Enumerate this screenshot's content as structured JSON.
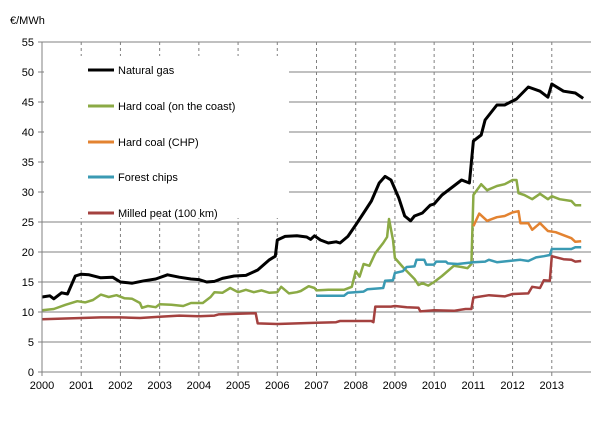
{
  "chart_data": {
    "type": "line",
    "ylabel": "€/MWh",
    "xlabel": "",
    "xlim": [
      2000,
      2014
    ],
    "ylim": [
      0,
      55
    ],
    "x_ticks": [
      "2000",
      "2001",
      "2002",
      "2003",
      "2004",
      "2005",
      "2006",
      "2007",
      "2008",
      "2009",
      "2010",
      "2011",
      "2012",
      "2013"
    ],
    "y_ticks": [
      "0",
      "5",
      "10",
      "15",
      "20",
      "25",
      "30",
      "35",
      "40",
      "45",
      "50",
      "55"
    ],
    "grid": true,
    "legend_position": "top-left",
    "series": [
      {
        "name": "Natural gas",
        "color": "#000000",
        "points": [
          [
            2000,
            12.5
          ],
          [
            2000.2,
            12.7
          ],
          [
            2000.3,
            12.2
          ],
          [
            2000.5,
            13.2
          ],
          [
            2000.65,
            13.0
          ],
          [
            2000.85,
            16.0
          ],
          [
            2001,
            16.3
          ],
          [
            2001.2,
            16.2
          ],
          [
            2001.5,
            15.7
          ],
          [
            2001.8,
            15.8
          ],
          [
            2002,
            15.0
          ],
          [
            2002.3,
            14.8
          ],
          [
            2002.6,
            15.2
          ],
          [
            2002.9,
            15.5
          ],
          [
            2003.2,
            16.2
          ],
          [
            2003.5,
            15.8
          ],
          [
            2003.8,
            15.5
          ],
          [
            2004,
            15.4
          ],
          [
            2004.2,
            15.0
          ],
          [
            2004.4,
            15.1
          ],
          [
            2004.6,
            15.6
          ],
          [
            2004.9,
            16.0
          ],
          [
            2005.2,
            16.1
          ],
          [
            2005.5,
            17.0
          ],
          [
            2005.8,
            18.7
          ],
          [
            2005.95,
            19.3
          ],
          [
            2006.0,
            22.0
          ],
          [
            2006.2,
            22.6
          ],
          [
            2006.5,
            22.7
          ],
          [
            2006.75,
            22.5
          ],
          [
            2006.85,
            22.1
          ],
          [
            2006.95,
            22.7
          ],
          [
            2007.1,
            22.0
          ],
          [
            2007.3,
            21.5
          ],
          [
            2007.5,
            21.7
          ],
          [
            2007.6,
            21.5
          ],
          [
            2007.8,
            22.6
          ],
          [
            2008,
            24.5
          ],
          [
            2008.2,
            26.5
          ],
          [
            2008.4,
            28.5
          ],
          [
            2008.6,
            31.5
          ],
          [
            2008.75,
            32.6
          ],
          [
            2008.9,
            32.0
          ],
          [
            2009.1,
            29.0
          ],
          [
            2009.25,
            26.0
          ],
          [
            2009.4,
            25.2
          ],
          [
            2009.5,
            26.0
          ],
          [
            2009.7,
            26.5
          ],
          [
            2009.9,
            27.8
          ],
          [
            2010.0,
            28.0
          ],
          [
            2010.2,
            29.5
          ],
          [
            2010.5,
            31.0
          ],
          [
            2010.7,
            32.0
          ],
          [
            2010.9,
            31.5
          ],
          [
            2011.0,
            38.5
          ],
          [
            2011.2,
            39.5
          ],
          [
            2011.3,
            42.0
          ],
          [
            2011.6,
            44.5
          ],
          [
            2011.8,
            44.5
          ],
          [
            2012.1,
            45.5
          ],
          [
            2012.4,
            47.5
          ],
          [
            2012.7,
            46.8
          ],
          [
            2012.9,
            45.8
          ],
          [
            2013.0,
            48.0
          ],
          [
            2013.3,
            46.8
          ],
          [
            2013.6,
            46.5
          ],
          [
            2013.8,
            45.6
          ]
        ]
      },
      {
        "name": "Hard coal (on the coast)",
        "color": "#8BAA45",
        "points": [
          [
            2000,
            10.3
          ],
          [
            2000.3,
            10.5
          ],
          [
            2000.6,
            11.2
          ],
          [
            2000.9,
            11.8
          ],
          [
            2001.1,
            11.6
          ],
          [
            2001.3,
            12.0
          ],
          [
            2001.5,
            12.9
          ],
          [
            2001.7,
            12.5
          ],
          [
            2001.9,
            12.8
          ],
          [
            2002.1,
            12.3
          ],
          [
            2002.3,
            12.2
          ],
          [
            2002.5,
            11.5
          ],
          [
            2002.55,
            10.7
          ],
          [
            2002.7,
            11.0
          ],
          [
            2002.9,
            10.8
          ],
          [
            2003,
            11.3
          ],
          [
            2003.3,
            11.2
          ],
          [
            2003.6,
            11.0
          ],
          [
            2003.8,
            11.5
          ],
          [
            2004.1,
            11.5
          ],
          [
            2004.3,
            12.5
          ],
          [
            2004.4,
            13.3
          ],
          [
            2004.6,
            13.2
          ],
          [
            2004.8,
            14.0
          ],
          [
            2005.0,
            13.3
          ],
          [
            2005.2,
            13.7
          ],
          [
            2005.4,
            13.3
          ],
          [
            2005.6,
            13.6
          ],
          [
            2005.8,
            13.2
          ],
          [
            2006.0,
            13.3
          ],
          [
            2006.1,
            14.2
          ],
          [
            2006.3,
            13.1
          ],
          [
            2006.5,
            13.3
          ],
          [
            2006.6,
            13.5
          ],
          [
            2006.8,
            14.3
          ],
          [
            2006.95,
            14.0
          ],
          [
            2007.0,
            13.6
          ],
          [
            2007.3,
            13.7
          ],
          [
            2007.7,
            13.7
          ],
          [
            2007.9,
            14.2
          ],
          [
            2008.0,
            16.8
          ],
          [
            2008.1,
            15.9
          ],
          [
            2008.2,
            18.0
          ],
          [
            2008.35,
            17.7
          ],
          [
            2008.5,
            19.8
          ],
          [
            2008.7,
            21.5
          ],
          [
            2008.8,
            22.5
          ],
          [
            2008.85,
            25.5
          ],
          [
            2008.95,
            22.0
          ],
          [
            2009.0,
            19.0
          ],
          [
            2009.2,
            17.5
          ],
          [
            2009.5,
            15.5
          ],
          [
            2009.6,
            14.5
          ],
          [
            2009.7,
            14.8
          ],
          [
            2009.85,
            14.4
          ],
          [
            2010.0,
            15.0
          ],
          [
            2010.2,
            16.0
          ],
          [
            2010.5,
            17.7
          ],
          [
            2010.7,
            17.5
          ],
          [
            2010.85,
            17.3
          ],
          [
            2010.95,
            18.0
          ],
          [
            2011.0,
            29.5
          ],
          [
            2011.2,
            31.3
          ],
          [
            2011.35,
            30.3
          ],
          [
            2011.6,
            31.0
          ],
          [
            2011.8,
            31.3
          ],
          [
            2012.0,
            32.0
          ],
          [
            2012.1,
            32.0
          ],
          [
            2012.15,
            29.8
          ],
          [
            2012.3,
            29.5
          ],
          [
            2012.5,
            28.8
          ],
          [
            2012.7,
            29.7
          ],
          [
            2012.9,
            28.8
          ],
          [
            2013.0,
            29.3
          ],
          [
            2013.2,
            28.8
          ],
          [
            2013.5,
            28.5
          ],
          [
            2013.6,
            27.8
          ],
          [
            2013.75,
            27.8
          ]
        ]
      },
      {
        "name": "Hard coal (CHP)",
        "color": "#E38331",
        "points": [
          [
            2011.0,
            24.3
          ],
          [
            2011.15,
            26.4
          ],
          [
            2011.35,
            25.2
          ],
          [
            2011.6,
            25.8
          ],
          [
            2011.8,
            26.0
          ],
          [
            2012.0,
            26.6
          ],
          [
            2012.15,
            26.8
          ],
          [
            2012.2,
            24.8
          ],
          [
            2012.4,
            24.8
          ],
          [
            2012.5,
            23.7
          ],
          [
            2012.7,
            24.8
          ],
          [
            2012.9,
            23.5
          ],
          [
            2013.1,
            23.3
          ],
          [
            2013.3,
            22.8
          ],
          [
            2013.5,
            22.3
          ],
          [
            2013.6,
            21.7
          ],
          [
            2013.75,
            21.8
          ]
        ]
      },
      {
        "name": "Forest chips",
        "color": "#3A9AB3",
        "points": [
          [
            2007.0,
            12.7
          ],
          [
            2007.7,
            12.7
          ],
          [
            2007.8,
            13.2
          ],
          [
            2008.2,
            13.4
          ],
          [
            2008.3,
            13.8
          ],
          [
            2008.7,
            14.0
          ],
          [
            2008.75,
            15.2
          ],
          [
            2008.95,
            15.3
          ],
          [
            2009.0,
            16.5
          ],
          [
            2009.2,
            16.8
          ],
          [
            2009.3,
            17.5
          ],
          [
            2009.5,
            17.6
          ],
          [
            2009.55,
            18.7
          ],
          [
            2009.75,
            18.7
          ],
          [
            2009.8,
            17.9
          ],
          [
            2010.0,
            17.9
          ],
          [
            2010.05,
            18.4
          ],
          [
            2010.3,
            18.4
          ],
          [
            2010.35,
            18.1
          ],
          [
            2010.6,
            18.0
          ],
          [
            2011.0,
            18.3
          ],
          [
            2011.3,
            18.4
          ],
          [
            2011.4,
            18.7
          ],
          [
            2011.6,
            18.3
          ],
          [
            2011.9,
            18.5
          ],
          [
            2012.2,
            18.7
          ],
          [
            2012.4,
            18.5
          ],
          [
            2012.6,
            19.1
          ],
          [
            2012.8,
            19.3
          ],
          [
            2012.95,
            19.5
          ],
          [
            2013.0,
            20.5
          ],
          [
            2013.5,
            20.5
          ],
          [
            2013.6,
            20.8
          ],
          [
            2013.75,
            20.8
          ]
        ]
      },
      {
        "name": "Milled peat (100 km)",
        "color": "#A4413F",
        "points": [
          [
            2000,
            8.8
          ],
          [
            2000.5,
            8.9
          ],
          [
            2001,
            9.0
          ],
          [
            2001.5,
            9.1
          ],
          [
            2002,
            9.1
          ],
          [
            2002.5,
            9.0
          ],
          [
            2003,
            9.2
          ],
          [
            2003.5,
            9.4
          ],
          [
            2004,
            9.3
          ],
          [
            2004.4,
            9.4
          ],
          [
            2004.5,
            9.6
          ],
          [
            2005.0,
            9.7
          ],
          [
            2005.45,
            9.8
          ],
          [
            2005.5,
            8.1
          ],
          [
            2006,
            8.0
          ],
          [
            2006.5,
            8.1
          ],
          [
            2007,
            8.2
          ],
          [
            2007.5,
            8.3
          ],
          [
            2007.6,
            8.5
          ],
          [
            2008.4,
            8.5
          ],
          [
            2008.45,
            8.3
          ],
          [
            2008.5,
            10.9
          ],
          [
            2008.9,
            10.9
          ],
          [
            2009.0,
            11.0
          ],
          [
            2009.3,
            10.8
          ],
          [
            2009.6,
            10.7
          ],
          [
            2009.65,
            10.1
          ],
          [
            2010,
            10.3
          ],
          [
            2010.5,
            10.2
          ],
          [
            2010.8,
            10.5
          ],
          [
            2010.95,
            10.5
          ],
          [
            2011.0,
            12.4
          ],
          [
            2011.4,
            12.8
          ],
          [
            2011.8,
            12.6
          ],
          [
            2012.0,
            13.0
          ],
          [
            2012.4,
            13.1
          ],
          [
            2012.5,
            14.2
          ],
          [
            2012.7,
            14.0
          ],
          [
            2012.8,
            15.3
          ],
          [
            2012.95,
            15.2
          ],
          [
            2013.0,
            19.3
          ],
          [
            2013.3,
            18.8
          ],
          [
            2013.5,
            18.7
          ],
          [
            2013.6,
            18.4
          ],
          [
            2013.75,
            18.5
          ]
        ]
      }
    ]
  }
}
